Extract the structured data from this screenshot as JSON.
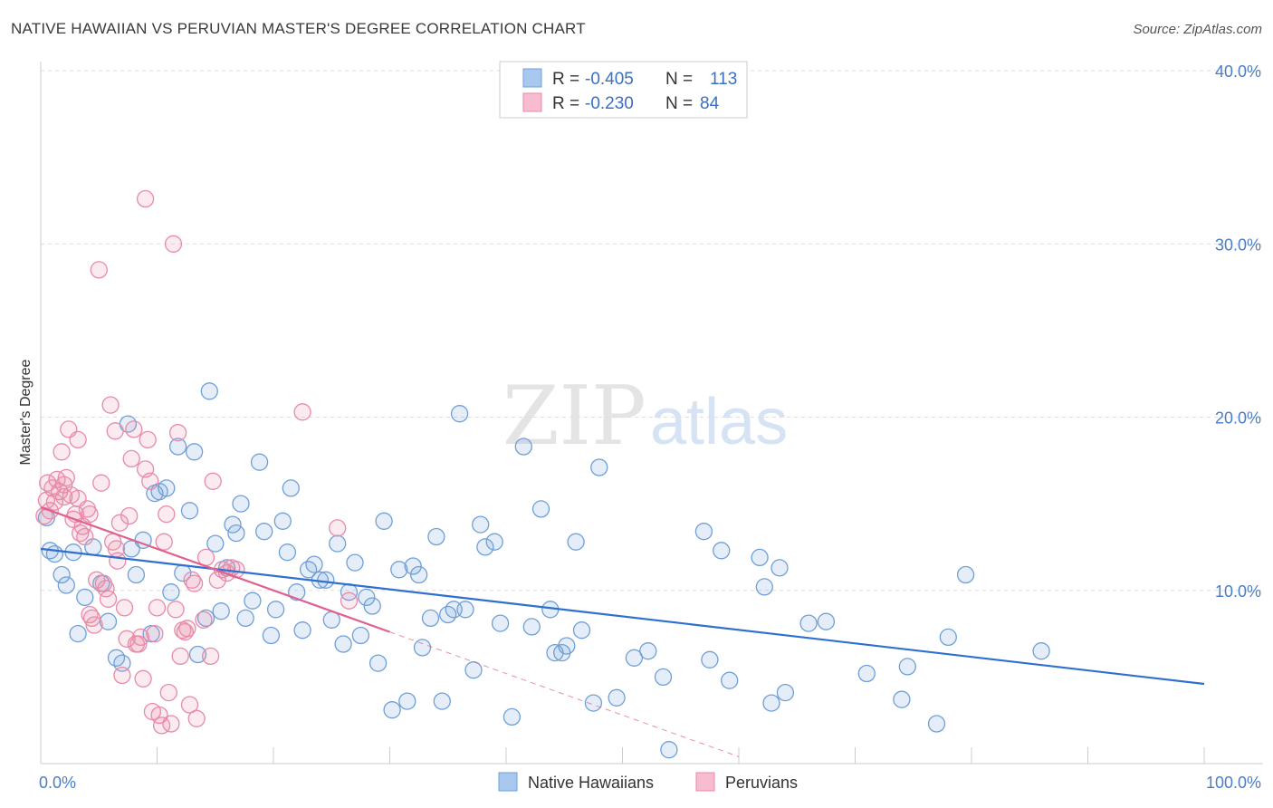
{
  "title": "NATIVE HAWAIIAN VS PERUVIAN MASTER'S DEGREE CORRELATION CHART",
  "source": "Source: ZipAtlas.com",
  "watermark": {
    "part1": "ZIP",
    "part2": "atlas"
  },
  "chart_data": {
    "type": "scatter",
    "ylabel": "Master's Degree",
    "xlim": [
      0,
      100
    ],
    "ylim": [
      0,
      40
    ],
    "x_ticks": [
      "0.0%",
      "100.0%"
    ],
    "y_ticks": [
      {
        "value": 10,
        "label": "10.0%"
      },
      {
        "value": 20,
        "label": "20.0%"
      },
      {
        "value": 30,
        "label": "30.0%"
      },
      {
        "value": 40,
        "label": "40.0%"
      }
    ],
    "grid": true,
    "legend_top": [
      {
        "r_label": "R =",
        "r_value": "-0.405",
        "n_label": "N =",
        "n_value": "113",
        "color": "#a8c8f0",
        "stroke": "#6f9fd8"
      },
      {
        "r_label": "R =",
        "r_value": "-0.230",
        "n_label": "N =",
        "n_value": "84",
        "color": "#f8bcd0",
        "stroke": "#e88aa8"
      }
    ],
    "series": [
      {
        "name": "Native Hawaiians",
        "color": "#6f9fd8",
        "line_color": "#2f6fd0",
        "trend": {
          "x0": 0,
          "y0": 12.4,
          "x1": 100,
          "y1": 4.6
        },
        "points": [
          [
            0.5,
            14.2
          ],
          [
            0.8,
            12.3
          ],
          [
            1.2,
            12.1
          ],
          [
            1.8,
            10.9
          ],
          [
            2.2,
            10.3
          ],
          [
            2.8,
            12.2
          ],
          [
            3.2,
            7.5
          ],
          [
            3.8,
            9.6
          ],
          [
            4.5,
            12.5
          ],
          [
            5.2,
            10.4
          ],
          [
            5.8,
            8.2
          ],
          [
            6.5,
            6.1
          ],
          [
            7.0,
            5.8
          ],
          [
            7.5,
            19.6
          ],
          [
            7.8,
            12.4
          ],
          [
            8.2,
            10.9
          ],
          [
            8.8,
            12.9
          ],
          [
            9.5,
            7.5
          ],
          [
            9.8,
            15.6
          ],
          [
            10.2,
            15.7
          ],
          [
            10.8,
            15.9
          ],
          [
            11.2,
            9.9
          ],
          [
            11.8,
            18.3
          ],
          [
            12.2,
            11.0
          ],
          [
            12.8,
            14.6
          ],
          [
            13.2,
            18.0
          ],
          [
            13.5,
            6.3
          ],
          [
            14.2,
            8.4
          ],
          [
            14.5,
            21.5
          ],
          [
            15.0,
            12.7
          ],
          [
            15.5,
            8.8
          ],
          [
            16.0,
            11.3
          ],
          [
            16.5,
            13.8
          ],
          [
            16.8,
            13.3
          ],
          [
            17.2,
            15.0
          ],
          [
            17.6,
            8.4
          ],
          [
            18.2,
            9.4
          ],
          [
            18.8,
            17.4
          ],
          [
            19.2,
            13.4
          ],
          [
            19.8,
            7.4
          ],
          [
            20.2,
            8.9
          ],
          [
            20.8,
            14.0
          ],
          [
            21.2,
            12.2
          ],
          [
            21.5,
            15.9
          ],
          [
            22.0,
            9.9
          ],
          [
            22.5,
            7.7
          ],
          [
            23.0,
            11.2
          ],
          [
            23.5,
            11.5
          ],
          [
            24.0,
            10.6
          ],
          [
            24.5,
            10.6
          ],
          [
            25.0,
            8.3
          ],
          [
            25.5,
            12.7
          ],
          [
            26.0,
            6.9
          ],
          [
            26.5,
            9.9
          ],
          [
            27.0,
            11.6
          ],
          [
            27.5,
            7.4
          ],
          [
            28.0,
            9.6
          ],
          [
            28.5,
            9.1
          ],
          [
            29.0,
            5.8
          ],
          [
            29.5,
            14.0
          ],
          [
            30.2,
            3.1
          ],
          [
            30.8,
            11.2
          ],
          [
            31.5,
            3.6
          ],
          [
            32.0,
            11.4
          ],
          [
            32.5,
            10.9
          ],
          [
            32.8,
            6.7
          ],
          [
            33.5,
            8.4
          ],
          [
            34.0,
            13.1
          ],
          [
            34.5,
            3.6
          ],
          [
            35.0,
            8.6
          ],
          [
            35.5,
            8.9
          ],
          [
            36.0,
            20.2
          ],
          [
            36.5,
            8.9
          ],
          [
            37.2,
            5.4
          ],
          [
            37.8,
            13.8
          ],
          [
            38.2,
            12.5
          ],
          [
            39.0,
            12.8
          ],
          [
            39.5,
            8.1
          ],
          [
            40.5,
            2.7
          ],
          [
            41.5,
            18.3
          ],
          [
            42.2,
            7.9
          ],
          [
            43.0,
            14.7
          ],
          [
            43.8,
            8.9
          ],
          [
            44.2,
            6.4
          ],
          [
            44.8,
            6.4
          ],
          [
            45.2,
            6.8
          ],
          [
            46.0,
            12.8
          ],
          [
            46.5,
            7.7
          ],
          [
            47.5,
            3.5
          ],
          [
            48.0,
            17.1
          ],
          [
            49.5,
            3.8
          ],
          [
            51.0,
            6.1
          ],
          [
            52.2,
            6.5
          ],
          [
            53.5,
            5.0
          ],
          [
            54.0,
            0.8
          ],
          [
            57.0,
            13.4
          ],
          [
            57.5,
            6.0
          ],
          [
            58.5,
            12.3
          ],
          [
            59.2,
            4.8
          ],
          [
            61.8,
            11.9
          ],
          [
            62.2,
            10.2
          ],
          [
            62.8,
            3.5
          ],
          [
            63.5,
            11.3
          ],
          [
            64.0,
            4.1
          ],
          [
            66.0,
            8.1
          ],
          [
            67.5,
            8.2
          ],
          [
            71.0,
            5.2
          ],
          [
            74.0,
            3.7
          ],
          [
            74.5,
            5.6
          ],
          [
            77.0,
            2.3
          ],
          [
            78.0,
            7.3
          ],
          [
            79.5,
            10.9
          ],
          [
            86.0,
            6.5
          ]
        ]
      },
      {
        "name": "Peruvians",
        "color": "#e88aa8",
        "line_color": "#e06090",
        "trend": {
          "x0": 0,
          "y0": 14.8,
          "x1": 30,
          "y1": 7.6
        },
        "trend_dashed": {
          "x0": 30,
          "y0": 7.6,
          "x1": 60,
          "y1": 0.4
        },
        "points": [
          [
            0.3,
            14.3
          ],
          [
            0.5,
            15.2
          ],
          [
            0.6,
            16.2
          ],
          [
            0.8,
            14.6
          ],
          [
            1.0,
            15.9
          ],
          [
            1.2,
            15.1
          ],
          [
            1.4,
            16.4
          ],
          [
            1.6,
            15.7
          ],
          [
            1.8,
            18.0
          ],
          [
            2.0,
            16.1
          ],
          [
            2.2,
            16.5
          ],
          [
            2.4,
            19.3
          ],
          [
            2.6,
            15.5
          ],
          [
            2.8,
            14.1
          ],
          [
            3.0,
            14.4
          ],
          [
            3.2,
            18.7
          ],
          [
            3.4,
            13.3
          ],
          [
            3.6,
            13.7
          ],
          [
            3.8,
            13.1
          ],
          [
            4.0,
            14.7
          ],
          [
            4.2,
            8.6
          ],
          [
            4.4,
            8.4
          ],
          [
            4.6,
            8.0
          ],
          [
            4.8,
            10.6
          ],
          [
            5.0,
            28.5
          ],
          [
            5.2,
            16.2
          ],
          [
            5.4,
            10.4
          ],
          [
            5.6,
            10.1
          ],
          [
            5.8,
            9.5
          ],
          [
            6.0,
            20.7
          ],
          [
            6.2,
            12.8
          ],
          [
            6.4,
            19.2
          ],
          [
            6.6,
            11.7
          ],
          [
            6.8,
            13.9
          ],
          [
            7.0,
            5.1
          ],
          [
            7.2,
            9.0
          ],
          [
            7.4,
            7.2
          ],
          [
            7.6,
            14.3
          ],
          [
            7.8,
            17.6
          ],
          [
            8.0,
            19.3
          ],
          [
            8.2,
            6.9
          ],
          [
            8.4,
            6.9
          ],
          [
            8.6,
            7.3
          ],
          [
            8.8,
            4.9
          ],
          [
            9.0,
            17.0
          ],
          [
            9.2,
            18.7
          ],
          [
            9.4,
            16.3
          ],
          [
            9.6,
            3.0
          ],
          [
            9.8,
            7.5
          ],
          [
            10.0,
            9.0
          ],
          [
            10.2,
            2.8
          ],
          [
            10.4,
            2.2
          ],
          [
            10.6,
            12.8
          ],
          [
            10.8,
            14.4
          ],
          [
            11.0,
            4.1
          ],
          [
            11.2,
            2.3
          ],
          [
            11.4,
            30.0
          ],
          [
            11.6,
            8.9
          ],
          [
            11.8,
            19.1
          ],
          [
            12.0,
            6.2
          ],
          [
            12.2,
            7.7
          ],
          [
            12.4,
            7.6
          ],
          [
            12.6,
            7.8
          ],
          [
            12.8,
            3.4
          ],
          [
            13.0,
            10.6
          ],
          [
            13.2,
            10.4
          ],
          [
            13.4,
            2.6
          ],
          [
            14.0,
            8.3
          ],
          [
            14.2,
            11.9
          ],
          [
            14.6,
            6.2
          ],
          [
            14.8,
            16.3
          ],
          [
            15.2,
            10.6
          ],
          [
            15.6,
            11.2
          ],
          [
            16.0,
            11.0
          ],
          [
            16.4,
            11.3
          ],
          [
            16.8,
            11.2
          ],
          [
            9.0,
            32.6
          ],
          [
            22.5,
            20.3
          ],
          [
            25.5,
            13.6
          ],
          [
            26.5,
            9.4
          ],
          [
            2.0,
            15.4
          ],
          [
            3.2,
            15.3
          ],
          [
            4.2,
            14.4
          ],
          [
            6.5,
            12.4
          ]
        ]
      }
    ]
  },
  "bottom_legend": [
    {
      "label": "Native Hawaiians",
      "color": "#a8c8f0",
      "stroke": "#6f9fd8"
    },
    {
      "label": "Peruvians",
      "color": "#f8bcd0",
      "stroke": "#e88aa8"
    }
  ]
}
